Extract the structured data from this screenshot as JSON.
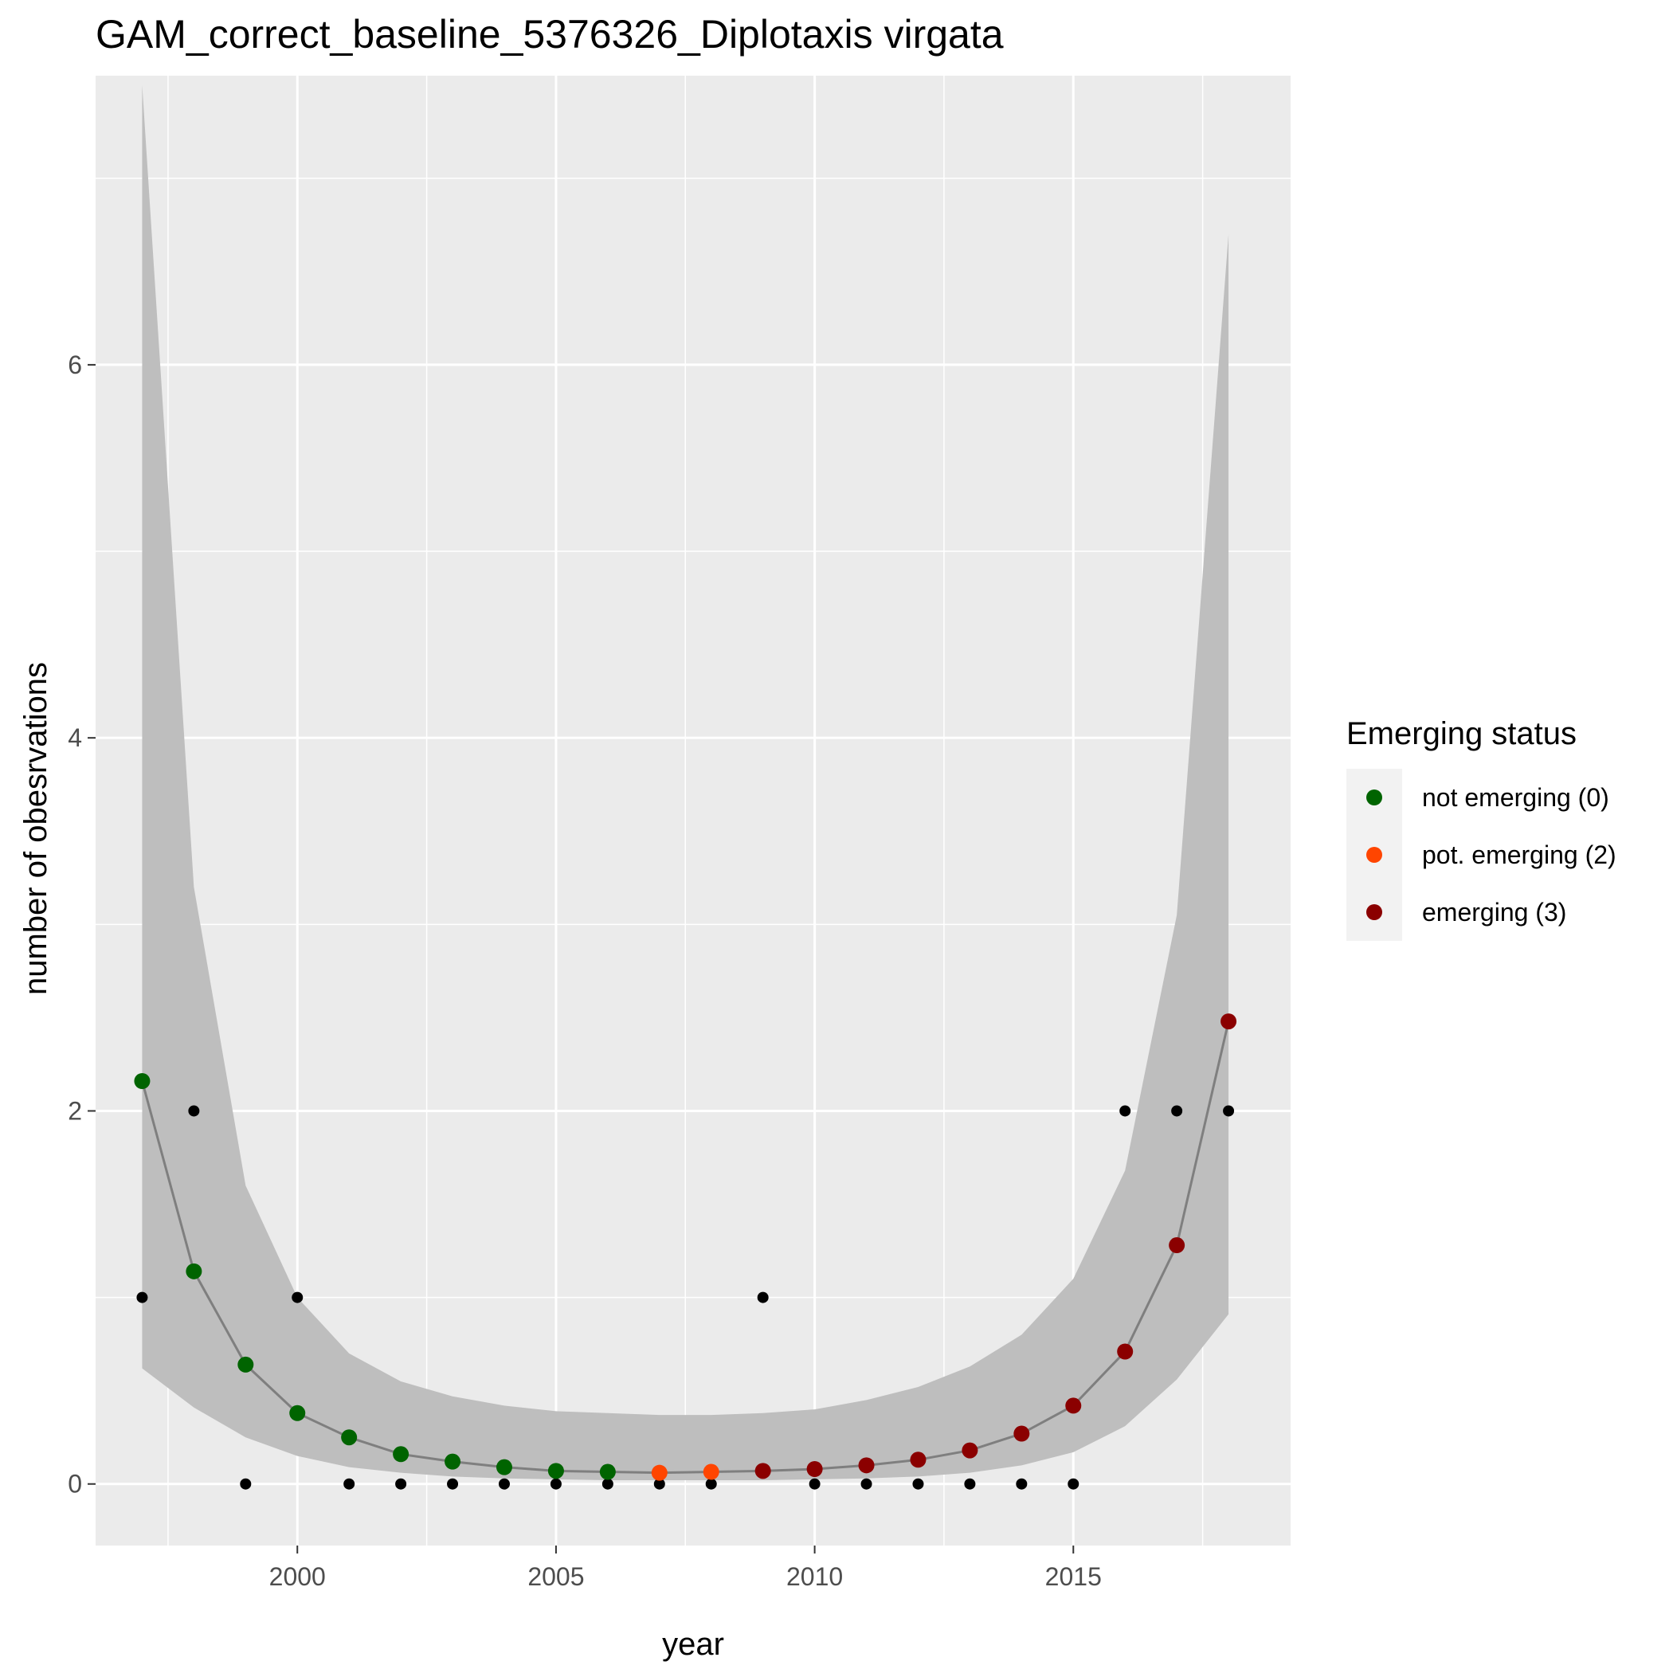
{
  "chart_data": {
    "type": "line",
    "title": "GAM_correct_baseline_5376326_Diplotaxis virgata",
    "xlabel": "year",
    "ylabel": "number of obesrvations",
    "xlim": [
      1996.1,
      2019.2
    ],
    "ylim": [
      -0.33,
      7.55
    ],
    "x_ticks": [
      2000,
      2005,
      2010,
      2015
    ],
    "y_ticks": [
      0,
      2,
      4,
      6
    ],
    "grid": true,
    "background_color": "#ebebeb",
    "grid_color": "#ffffff",
    "x": [
      1997,
      1998,
      1999,
      2000,
      2001,
      2002,
      2003,
      2004,
      2005,
      2006,
      2007,
      2008,
      2009,
      2010,
      2011,
      2012,
      2013,
      2014,
      2015,
      2016,
      2017,
      2018
    ],
    "observed": [
      1,
      2,
      0,
      1,
      0,
      0,
      0,
      0,
      0,
      0,
      0,
      0,
      1,
      0,
      0,
      0,
      0,
      0,
      0,
      2,
      2,
      2
    ],
    "fit": [
      2.16,
      1.14,
      0.64,
      0.38,
      0.25,
      0.16,
      0.12,
      0.09,
      0.07,
      0.065,
      0.06,
      0.065,
      0.07,
      0.08,
      0.1,
      0.13,
      0.18,
      0.27,
      0.42,
      0.71,
      1.28,
      2.48
    ],
    "ci_lower": [
      0.62,
      0.41,
      0.25,
      0.15,
      0.09,
      0.06,
      0.04,
      0.03,
      0.025,
      0.02,
      0.02,
      0.02,
      0.02,
      0.025,
      0.03,
      0.04,
      0.06,
      0.1,
      0.17,
      0.31,
      0.56,
      0.91
    ],
    "ci_upper": [
      7.5,
      3.2,
      1.6,
      1.0,
      0.7,
      0.55,
      0.47,
      0.42,
      0.39,
      0.38,
      0.37,
      0.37,
      0.38,
      0.4,
      0.45,
      0.52,
      0.63,
      0.8,
      1.1,
      1.68,
      3.05,
      6.7
    ],
    "status": [
      0,
      0,
      0,
      0,
      0,
      0,
      0,
      0,
      0,
      0,
      2,
      2,
      3,
      3,
      3,
      3,
      3,
      3,
      3,
      3,
      3,
      3
    ],
    "observed_color": "#000000",
    "fit_line_color": "#7f7f7f",
    "ribbon_color": "#bebebe",
    "legend": {
      "title": "Emerging status",
      "placement": "right",
      "entries": [
        {
          "label": "not emerging (0)",
          "status": 0,
          "color": "#006400"
        },
        {
          "label": "pot. emerging (2)",
          "status": 2,
          "color": "#ff4500"
        },
        {
          "label": "emerging (3)",
          "status": 3,
          "color": "#8b0000"
        }
      ]
    }
  }
}
